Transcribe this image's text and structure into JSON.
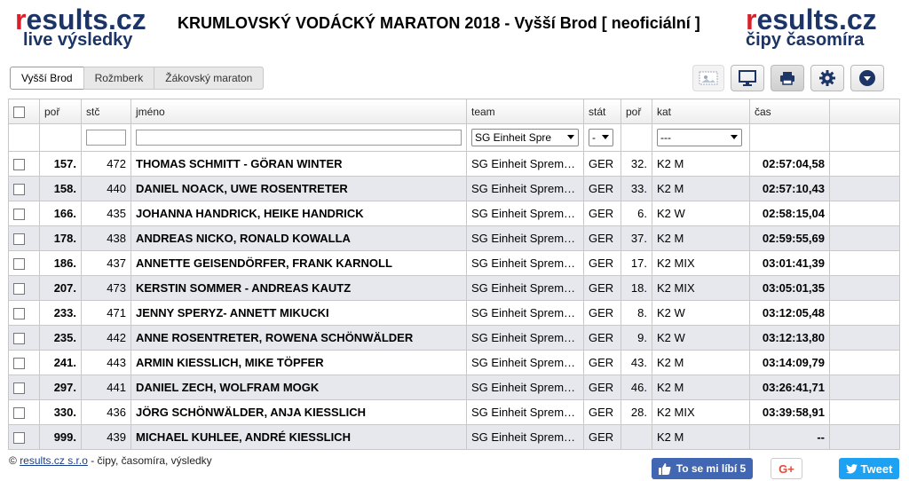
{
  "header": {
    "logo_brand_r": "r",
    "logo_brand_rest": "esults.cz",
    "logo_left_sub": "live výsledky",
    "logo_right_sub": "čipy časomíra",
    "title": "KRUMLOVSKÝ VODÁCKÝ MARATON 2018 - Vyšší Brod [ neoficiální ]"
  },
  "tabs": [
    {
      "label": "Vyšší Brod",
      "active": true
    },
    {
      "label": "Rožmberk",
      "active": false
    },
    {
      "label": "Žákovský maraton",
      "active": false
    }
  ],
  "tools": [
    "image-icon",
    "monitor-icon",
    "print-icon",
    "gear-icon",
    "chevron-down-icon"
  ],
  "columns": [
    "poř",
    "stč",
    "jméno",
    "team",
    "stát",
    "poř",
    "kat",
    "čas"
  ],
  "filters": {
    "team": "SG Einheit Spre",
    "stat": "-",
    "kat": "---"
  },
  "rows": [
    {
      "por": "157.",
      "stc": "472",
      "name": "THOMAS SCHMITT - GÖRAN WINTER",
      "team": "SG Einheit Sprem…",
      "stat": "GER",
      "rank": "32.",
      "kat": "K2 M",
      "time": "02:57:04,58"
    },
    {
      "por": "158.",
      "stc": "440",
      "name": "DANIEL NOACK, UWE ROSENTRETER",
      "team": "SG Einheit Sprem…",
      "stat": "GER",
      "rank": "33.",
      "kat": "K2 M",
      "time": "02:57:10,43"
    },
    {
      "por": "166.",
      "stc": "435",
      "name": "JOHANNA HANDRICK, HEIKE HANDRICK",
      "team": "SG Einheit Sprem…",
      "stat": "GER",
      "rank": "6.",
      "kat": "K2 W",
      "time": "02:58:15,04"
    },
    {
      "por": "178.",
      "stc": "438",
      "name": "ANDREAS NICKO, RONALD KOWALLA",
      "team": "SG Einheit Sprem…",
      "stat": "GER",
      "rank": "37.",
      "kat": "K2 M",
      "time": "02:59:55,69"
    },
    {
      "por": "186.",
      "stc": "437",
      "name": "ANNETTE GEISENDÖRFER, FRANK KARNOLL",
      "team": "SG Einheit Sprem…",
      "stat": "GER",
      "rank": "17.",
      "kat": "K2 MIX",
      "time": "03:01:41,39"
    },
    {
      "por": "207.",
      "stc": "473",
      "name": "KERSTIN SOMMER - ANDREAS KAUTZ",
      "team": "SG Einheit Sprem…",
      "stat": "GER",
      "rank": "18.",
      "kat": "K2 MIX",
      "time": "03:05:01,35"
    },
    {
      "por": "233.",
      "stc": "471",
      "name": "JENNY SPERYZ- ANNETT MIKUCKI",
      "team": "SG Einheit Sprem…",
      "stat": "GER",
      "rank": "8.",
      "kat": "K2 W",
      "time": "03:12:05,48"
    },
    {
      "por": "235.",
      "stc": "442",
      "name": "ANNE ROSENTRETER, ROWENA SCHÖNWÄLDER",
      "team": "SG Einheit Sprem…",
      "stat": "GER",
      "rank": "9.",
      "kat": "K2 W",
      "time": "03:12:13,80"
    },
    {
      "por": "241.",
      "stc": "443",
      "name": "ARMIN KIESSLICH, MIKE TÖPFER",
      "team": "SG Einheit Sprem…",
      "stat": "GER",
      "rank": "43.",
      "kat": "K2 M",
      "time": "03:14:09,79"
    },
    {
      "por": "297.",
      "stc": "441",
      "name": "DANIEL ZECH, WOLFRAM MOGK",
      "team": "SG Einheit Sprem…",
      "stat": "GER",
      "rank": "46.",
      "kat": "K2 M",
      "time": "03:26:41,71"
    },
    {
      "por": "330.",
      "stc": "436",
      "name": "JÖRG SCHÖNWÄLDER, ANJA KIESSLICH",
      "team": "SG Einheit Sprem…",
      "stat": "GER",
      "rank": "28.",
      "kat": "K2 MIX",
      "time": "03:39:58,91"
    },
    {
      "por": "999.",
      "stc": "439",
      "name": "MICHAEL KUHLEE, ANDRÉ KIESSLICH",
      "team": "SG Einheit Sprem…",
      "stat": "GER",
      "rank": "",
      "kat": "K2 M",
      "time": "--"
    }
  ],
  "footer": {
    "copyright": "©",
    "link": "results.cz s.r.o",
    "rest": " - čipy, časomíra, výsledky",
    "facebook": "To se mi líbí 5",
    "gplus": "G+",
    "tweet": "Tweet"
  },
  "colors": {
    "brand_blue": "#1c3566",
    "brand_red": "#d8202a",
    "row_alt": "#e6e8ed"
  }
}
